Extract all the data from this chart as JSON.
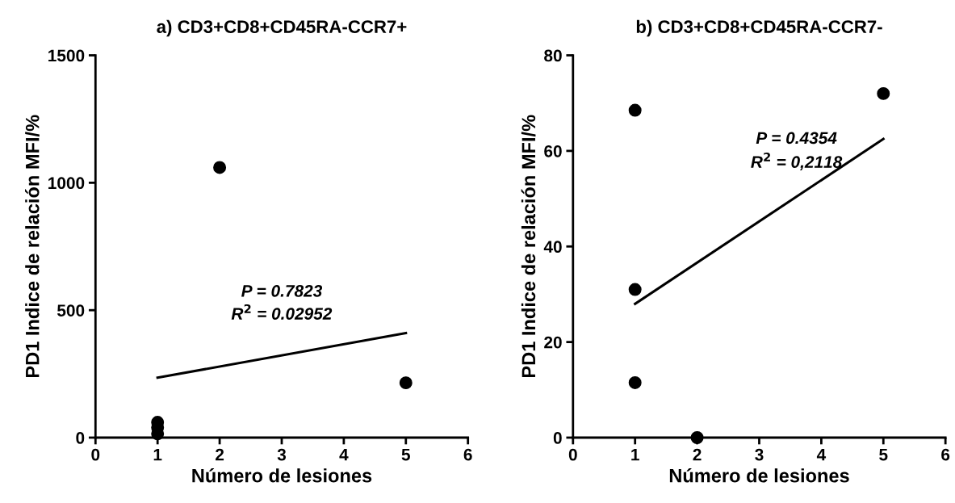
{
  "chart_data": [
    {
      "type": "scatter",
      "title": "a) CD3+CD8+CD45RA-CCR7+",
      "xlabel": "Número de lesiones",
      "ylabel": "PD1 Indice de relación MFI/%",
      "series": [
        {
          "color": "#000000",
          "marker": "circle",
          "x": [
            1,
            1,
            1,
            2,
            5
          ],
          "values": [
            60,
            40,
            15,
            1060,
            215
          ]
        },
        {
          "type": "line",
          "marker": "none",
          "color": "#000000",
          "x": [
            1,
            5
          ],
          "values": [
            235,
            410
          ]
        }
      ],
      "annotations": [
        "P = 0.7823",
        "R$^{2}$ = 0.02952"
      ],
      "xlim": [
        0,
        6
      ],
      "xticks": [
        0,
        1,
        2,
        3,
        4,
        5,
        6
      ],
      "ylim": [
        0,
        1500
      ],
      "yticks": [
        0,
        500,
        1000,
        1500
      ],
      "grid": false,
      "legend": false
    },
    {
      "type": "scatter",
      "title": "b) CD3+CD8+CD45RA-CCR7-",
      "xlabel": "Número de lesiones",
      "ylabel": "PD1 Indice de relación MFI/%",
      "series": [
        {
          "color": "#000000",
          "marker": "circle",
          "x": [
            1,
            1,
            1,
            2,
            5
          ],
          "values": [
            68.5,
            31,
            11.5,
            0,
            72
          ]
        },
        {
          "type": "line",
          "marker": "none",
          "color": "#000000",
          "x": [
            1,
            5
          ],
          "values": [
            28,
            62.5
          ]
        }
      ],
      "annotations": [
        "P = 0.4354",
        "R$^{2}$ = 0,2118"
      ],
      "xlim": [
        0,
        6
      ],
      "xticks": [
        0,
        1,
        2,
        3,
        4,
        5,
        6
      ],
      "ylim": [
        0,
        80
      ],
      "yticks": [
        0,
        20,
        40,
        60,
        80
      ],
      "grid": false,
      "legend": false
    }
  ]
}
